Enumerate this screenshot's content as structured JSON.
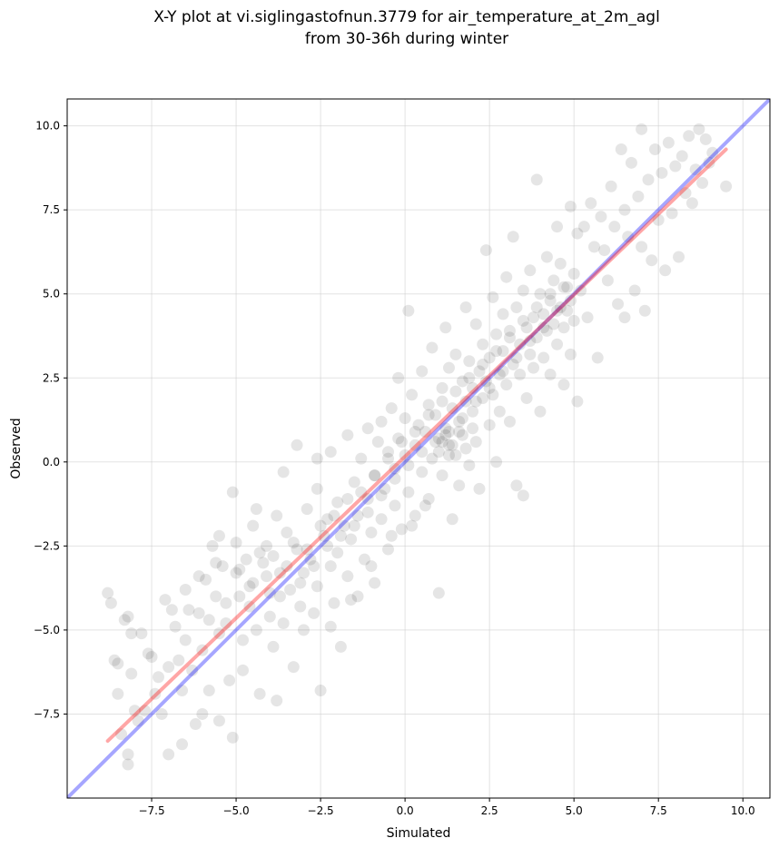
{
  "chart_data": {
    "type": "scatter",
    "title": [
      "X-Y plot at vi.siglingastofnun.3779 for air_temperature_at_2m_agl",
      "from 30-36h during winter"
    ],
    "xlabel": "Simulated",
    "ylabel": "Observed",
    "xlim": [
      -10.0,
      10.8
    ],
    "ylim": [
      -10.0,
      10.8
    ],
    "xticks": [
      -7.5,
      -5.0,
      -2.5,
      0.0,
      2.5,
      5.0,
      7.5,
      10.0
    ],
    "yticks": [
      -7.5,
      -5.0,
      -2.5,
      0.0,
      2.5,
      5.0,
      7.5,
      10.0
    ],
    "xtick_labels": [
      "−7.5",
      "−5.0",
      "−2.5",
      "0.0",
      "2.5",
      "5.0",
      "7.5",
      "10.0"
    ],
    "ytick_labels": [
      "−7.5",
      "−5.0",
      "−2.5",
      "0.0",
      "2.5",
      "5.0",
      "7.5",
      "10.0"
    ],
    "grid": true,
    "point_color": "#000000",
    "point_alpha": 0.1,
    "lines": [
      {
        "kind": "one-to-one",
        "color": "#0000ff",
        "alpha": 0.35,
        "points": [
          [
            -10.0,
            -10.0
          ],
          [
            10.8,
            10.8
          ]
        ]
      },
      {
        "kind": "fit",
        "color": "#ff0000",
        "alpha": 0.35,
        "points": [
          [
            -8.8,
            -8.3
          ],
          [
            9.5,
            9.3
          ]
        ]
      }
    ],
    "points": [
      [
        -8.8,
        -3.9
      ],
      [
        -8.7,
        -4.2
      ],
      [
        -8.6,
        -5.9
      ],
      [
        -8.5,
        -6.0
      ],
      [
        -8.5,
        -6.9
      ],
      [
        -8.4,
        -8.1
      ],
      [
        -8.3,
        -4.7
      ],
      [
        -8.2,
        -4.6
      ],
      [
        -8.2,
        -8.7
      ],
      [
        -8.2,
        -9.0
      ],
      [
        -8.1,
        -6.3
      ],
      [
        -8.1,
        -5.1
      ],
      [
        -8.0,
        -7.4
      ],
      [
        -7.9,
        -7.7
      ],
      [
        -7.8,
        -5.1
      ],
      [
        -7.7,
        -7.4
      ],
      [
        -7.6,
        -5.7
      ],
      [
        -7.5,
        -5.8
      ],
      [
        -7.4,
        -6.9
      ],
      [
        -7.3,
        -6.4
      ],
      [
        -7.2,
        -7.5
      ],
      [
        -7.1,
        -4.1
      ],
      [
        -7.0,
        -8.7
      ],
      [
        -7.0,
        -6.1
      ],
      [
        -6.9,
        -4.4
      ],
      [
        -6.8,
        -4.9
      ],
      [
        -6.7,
        -5.9
      ],
      [
        -6.6,
        -8.4
      ],
      [
        -6.6,
        -6.8
      ],
      [
        -6.5,
        -3.8
      ],
      [
        -6.5,
        -5.3
      ],
      [
        -6.4,
        -4.4
      ],
      [
        -6.3,
        -6.2
      ],
      [
        -6.2,
        -7.8
      ],
      [
        -6.1,
        -4.5
      ],
      [
        -6.0,
        -7.5
      ],
      [
        -6.0,
        -5.6
      ],
      [
        -5.9,
        -3.5
      ],
      [
        -5.8,
        -4.7
      ],
      [
        -5.8,
        -6.8
      ],
      [
        -5.7,
        -2.5
      ],
      [
        -5.6,
        -4.0
      ],
      [
        -5.5,
        -7.7
      ],
      [
        -5.5,
        -5.1
      ],
      [
        -5.4,
        -3.1
      ],
      [
        -5.3,
        -4.8
      ],
      [
        -5.2,
        -6.5
      ],
      [
        -5.1,
        -0.9
      ],
      [
        -5.1,
        -8.2
      ],
      [
        -5.0,
        -2.4
      ],
      [
        -5.0,
        -3.3
      ],
      [
        -4.9,
        -4.0
      ],
      [
        -4.8,
        -5.3
      ],
      [
        -4.8,
        -6.2
      ],
      [
        -4.7,
        -2.9
      ],
      [
        -4.6,
        -4.3
      ],
      [
        -4.5,
        -3.6
      ],
      [
        -4.5,
        -1.9
      ],
      [
        -4.4,
        -5.0
      ],
      [
        -4.3,
        -6.9
      ],
      [
        -4.2,
        -3.0
      ],
      [
        -4.1,
        -2.5
      ],
      [
        -4.0,
        -4.6
      ],
      [
        -4.0,
        -3.9
      ],
      [
        -3.9,
        -5.5
      ],
      [
        -3.8,
        -1.6
      ],
      [
        -3.8,
        -7.1
      ],
      [
        -3.7,
        -3.3
      ],
      [
        -3.6,
        -4.8
      ],
      [
        -3.6,
        -0.3
      ],
      [
        -3.5,
        -2.1
      ],
      [
        -3.4,
        -3.8
      ],
      [
        -3.3,
        -6.1
      ],
      [
        -3.2,
        -2.6
      ],
      [
        -3.1,
        -4.3
      ],
      [
        -3.0,
        -3.3
      ],
      [
        -3.0,
        -5.0
      ],
      [
        -2.9,
        -1.4
      ],
      [
        -2.8,
        -2.9
      ],
      [
        -2.7,
        -4.5
      ],
      [
        -2.6,
        -3.7
      ],
      [
        -2.6,
        -0.8
      ],
      [
        -2.5,
        -6.8
      ],
      [
        -2.4,
        -2.2
      ],
      [
        -2.3,
        -1.7
      ],
      [
        -2.2,
        -3.1
      ],
      [
        -2.2,
        0.3
      ],
      [
        -2.1,
        -4.2
      ],
      [
        -2.0,
        -2.7
      ],
      [
        -2.0,
        -1.2
      ],
      [
        -1.9,
        -5.5
      ],
      [
        -1.8,
        -1.9
      ],
      [
        -1.7,
        0.8
      ],
      [
        -1.7,
        -3.4
      ],
      [
        -1.6,
        -2.3
      ],
      [
        -1.5,
        -0.6
      ],
      [
        -1.4,
        -1.6
      ],
      [
        -1.4,
        -4.0
      ],
      [
        -1.3,
        0.1
      ],
      [
        -1.2,
        -2.9
      ],
      [
        -1.1,
        -1.1
      ],
      [
        -1.1,
        1.0
      ],
      [
        -1.0,
        -2.1
      ],
      [
        -0.9,
        -0.4
      ],
      [
        -0.9,
        -3.6
      ],
      [
        -0.8,
        0.6
      ],
      [
        -0.7,
        -1.7
      ],
      [
        -0.7,
        1.2
      ],
      [
        -0.6,
        -0.8
      ],
      [
        -0.5,
        0.3
      ],
      [
        -0.5,
        -2.6
      ],
      [
        -0.4,
        1.6
      ],
      [
        -0.3,
        -0.2
      ],
      [
        -0.3,
        -1.3
      ],
      [
        -0.2,
        2.5
      ],
      [
        -0.2,
        0.7
      ],
      [
        -0.1,
        -2.0
      ],
      [
        0.0,
        0.2
      ],
      [
        0.0,
        1.3
      ],
      [
        0.1,
        -0.9
      ],
      [
        0.1,
        4.5
      ],
      [
        0.2,
        2.0
      ],
      [
        0.3,
        0.5
      ],
      [
        0.3,
        -1.6
      ],
      [
        0.4,
        1.1
      ],
      [
        0.5,
        -0.3
      ],
      [
        0.5,
        2.7
      ],
      [
        0.6,
        0.9
      ],
      [
        0.7,
        -1.1
      ],
      [
        0.7,
        1.7
      ],
      [
        0.8,
        0.1
      ],
      [
        0.8,
        3.4
      ],
      [
        0.9,
        1.4
      ],
      [
        1.0,
        -3.9
      ],
      [
        1.0,
        0.7
      ],
      [
        1.1,
        2.2
      ],
      [
        1.1,
        -0.4
      ],
      [
        1.2,
        1.0
      ],
      [
        1.2,
        4.0
      ],
      [
        1.3,
        0.5
      ],
      [
        1.3,
        2.8
      ],
      [
        1.4,
        -1.7
      ],
      [
        1.4,
        1.6
      ],
      [
        1.5,
        0.2
      ],
      [
        1.5,
        3.2
      ],
      [
        1.6,
        1.2
      ],
      [
        1.6,
        -0.7
      ],
      [
        1.7,
        2.4
      ],
      [
        1.7,
        0.8
      ],
      [
        1.8,
        4.6
      ],
      [
        1.8,
        1.8
      ],
      [
        1.9,
        -0.1
      ],
      [
        1.9,
        3.0
      ],
      [
        2.0,
        1.5
      ],
      [
        2.0,
        2.2
      ],
      [
        2.1,
        0.6
      ],
      [
        2.1,
        4.1
      ],
      [
        2.2,
        2.7
      ],
      [
        2.2,
        -0.8
      ],
      [
        2.3,
        1.9
      ],
      [
        2.3,
        3.5
      ],
      [
        2.4,
        2.4
      ],
      [
        2.4,
        6.3
      ],
      [
        2.5,
        1.1
      ],
      [
        2.5,
        3.1
      ],
      [
        2.6,
        4.9
      ],
      [
        2.6,
        2.0
      ],
      [
        2.7,
        0.0
      ],
      [
        2.7,
        3.8
      ],
      [
        2.8,
        2.6
      ],
      [
        2.8,
        1.5
      ],
      [
        2.9,
        4.4
      ],
      [
        2.9,
        3.3
      ],
      [
        3.0,
        2.3
      ],
      [
        3.0,
        5.5
      ],
      [
        3.1,
        1.2
      ],
      [
        3.1,
        3.9
      ],
      [
        3.2,
        2.9
      ],
      [
        3.2,
        6.7
      ],
      [
        3.3,
        4.6
      ],
      [
        3.3,
        -0.7
      ],
      [
        3.4,
        3.5
      ],
      [
        3.4,
        2.6
      ],
      [
        3.5,
        5.1
      ],
      [
        3.5,
        -1.0
      ],
      [
        3.6,
        4.0
      ],
      [
        3.6,
        1.9
      ],
      [
        3.7,
        3.2
      ],
      [
        3.7,
        5.7
      ],
      [
        3.8,
        4.3
      ],
      [
        3.8,
        2.8
      ],
      [
        3.9,
        8.4
      ],
      [
        3.9,
        3.7
      ],
      [
        4.0,
        5.0
      ],
      [
        4.0,
        1.5
      ],
      [
        4.1,
        4.4
      ],
      [
        4.1,
        3.1
      ],
      [
        4.2,
        6.1
      ],
      [
        4.2,
        3.9
      ],
      [
        4.3,
        4.8
      ],
      [
        4.3,
        2.6
      ],
      [
        4.4,
        5.4
      ],
      [
        4.4,
        4.1
      ],
      [
        4.5,
        3.5
      ],
      [
        4.5,
        7.0
      ],
      [
        4.6,
        4.6
      ],
      [
        4.6,
        5.9
      ],
      [
        4.7,
        4.0
      ],
      [
        4.7,
        2.3
      ],
      [
        4.8,
        5.2
      ],
      [
        4.8,
        4.5
      ],
      [
        4.9,
        7.6
      ],
      [
        4.9,
        3.2
      ],
      [
        5.0,
        5.6
      ],
      [
        5.0,
        4.2
      ],
      [
        5.1,
        6.8
      ],
      [
        5.1,
        1.8
      ],
      [
        5.2,
        5.1
      ],
      [
        5.3,
        7.0
      ],
      [
        5.4,
        4.3
      ],
      [
        5.5,
        7.7
      ],
      [
        5.6,
        6.4
      ],
      [
        5.7,
        3.1
      ],
      [
        5.8,
        7.3
      ],
      [
        5.9,
        6.3
      ],
      [
        6.0,
        5.4
      ],
      [
        6.1,
        8.2
      ],
      [
        6.2,
        7.0
      ],
      [
        6.3,
        4.7
      ],
      [
        6.4,
        9.3
      ],
      [
        6.5,
        7.5
      ],
      [
        6.5,
        4.3
      ],
      [
        6.6,
        6.7
      ],
      [
        6.7,
        8.9
      ],
      [
        6.8,
        5.1
      ],
      [
        6.9,
        7.9
      ],
      [
        7.0,
        6.4
      ],
      [
        7.0,
        9.9
      ],
      [
        7.1,
        4.5
      ],
      [
        7.2,
        8.4
      ],
      [
        7.3,
        6.0
      ],
      [
        7.4,
        9.3
      ],
      [
        7.5,
        7.2
      ],
      [
        7.6,
        8.6
      ],
      [
        7.7,
        5.7
      ],
      [
        7.8,
        9.5
      ],
      [
        7.9,
        7.4
      ],
      [
        8.0,
        8.8
      ],
      [
        8.1,
        6.1
      ],
      [
        8.2,
        9.1
      ],
      [
        8.3,
        8.0
      ],
      [
        8.4,
        9.7
      ],
      [
        8.5,
        7.7
      ],
      [
        8.6,
        8.7
      ],
      [
        8.7,
        9.9
      ],
      [
        8.8,
        8.3
      ],
      [
        8.9,
        9.6
      ],
      [
        9.0,
        8.9
      ],
      [
        9.1,
        9.2
      ],
      [
        9.5,
        8.2
      ],
      [
        -6.1,
        -3.4
      ],
      [
        -5.6,
        -3.0
      ],
      [
        -5.3,
        -4.2
      ],
      [
        -4.9,
        -3.2
      ],
      [
        -4.6,
        -3.7
      ],
      [
        -4.3,
        -2.7
      ],
      [
        -4.1,
        -3.4
      ],
      [
        -3.9,
        -2.8
      ],
      [
        -3.7,
        -4.0
      ],
      [
        -3.5,
        -3.1
      ],
      [
        -3.3,
        -2.4
      ],
      [
        -3.1,
        -3.6
      ],
      [
        -2.9,
        -2.6
      ],
      [
        -2.7,
        -3.1
      ],
      [
        -2.5,
        -1.9
      ],
      [
        -2.3,
        -2.5
      ],
      [
        -2.1,
        -1.6
      ],
      [
        -1.9,
        -2.2
      ],
      [
        -1.7,
        -1.1
      ],
      [
        -1.5,
        -1.9
      ],
      [
        -1.3,
        -0.9
      ],
      [
        -1.1,
        -1.5
      ],
      [
        -0.9,
        -0.4
      ],
      [
        -0.7,
        -1.0
      ],
      [
        -0.5,
        0.1
      ],
      [
        -0.3,
        -0.5
      ],
      [
        -0.1,
        0.6
      ],
      [
        0.1,
        -0.1
      ],
      [
        0.3,
        0.9
      ],
      [
        0.5,
        0.3
      ],
      [
        0.7,
        1.4
      ],
      [
        0.9,
        0.6
      ],
      [
        1.1,
        1.8
      ],
      [
        1.3,
        0.9
      ],
      [
        1.5,
        2.1
      ],
      [
        1.7,
        1.3
      ],
      [
        1.9,
        2.5
      ],
      [
        2.1,
        1.8
      ],
      [
        2.3,
        2.9
      ],
      [
        2.5,
        2.2
      ],
      [
        2.7,
        3.3
      ],
      [
        2.9,
        2.7
      ],
      [
        3.1,
        3.7
      ],
      [
        3.3,
        3.1
      ],
      [
        3.5,
        4.2
      ],
      [
        3.7,
        3.6
      ],
      [
        3.9,
        4.6
      ],
      [
        4.1,
        4.0
      ],
      [
        4.3,
        5.0
      ],
      [
        4.5,
        4.5
      ],
      [
        4.7,
        5.2
      ],
      [
        4.9,
        4.8
      ],
      [
        1.0,
        0.3
      ],
      [
        1.2,
        0.8
      ],
      [
        1.4,
        0.5
      ],
      [
        1.6,
        0.9
      ],
      [
        1.8,
        0.4
      ],
      [
        2.0,
        1.0
      ],
      [
        1.1,
        0.6
      ],
      [
        1.3,
        0.2
      ],
      [
        -2.2,
        -4.9
      ],
      [
        -1.6,
        -4.1
      ],
      [
        -1.0,
        -3.1
      ],
      [
        -0.4,
        -2.2
      ],
      [
        0.2,
        -1.9
      ],
      [
        0.6,
        -1.3
      ],
      [
        -5.5,
        -2.2
      ],
      [
        -4.4,
        -1.4
      ],
      [
        -3.2,
        0.5
      ],
      [
        -2.6,
        0.1
      ]
    ]
  }
}
